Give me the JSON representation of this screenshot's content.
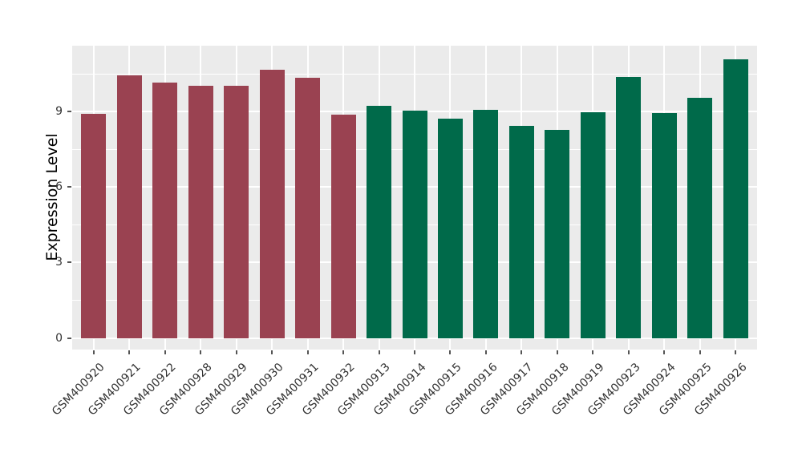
{
  "figure": {
    "background": "#FFFFFF"
  },
  "chart_data": {
    "type": "bar",
    "title": "",
    "xlabel": "",
    "ylabel": "Expression Level",
    "categories": [
      "GSM400920",
      "GSM400921",
      "GSM400922",
      "GSM400928",
      "GSM400929",
      "GSM400930",
      "GSM400931",
      "GSM400932",
      "GSM400913",
      "GSM400914",
      "GSM400915",
      "GSM400916",
      "GSM400917",
      "GSM400918",
      "GSM400919",
      "GSM400923",
      "GSM400924",
      "GSM400925",
      "GSM400926"
    ],
    "values": [
      8.88,
      10.43,
      10.14,
      10.02,
      10.02,
      10.64,
      10.33,
      8.87,
      9.21,
      9.02,
      8.7,
      9.05,
      8.42,
      8.26,
      8.96,
      10.36,
      8.92,
      9.53,
      11.06
    ],
    "bar_colors": [
      "#9A4251",
      "#9A4251",
      "#9A4251",
      "#9A4251",
      "#9A4251",
      "#9A4251",
      "#9A4251",
      "#9A4251",
      "#006A4A",
      "#006A4A",
      "#006A4A",
      "#006A4A",
      "#006A4A",
      "#006A4A",
      "#006A4A",
      "#006A4A",
      "#006A4A",
      "#006A4A",
      "#006A4A"
    ],
    "yticks": [
      0,
      3,
      6,
      9
    ],
    "ytick_labels": [
      "0",
      "3",
      "6",
      "9"
    ],
    "minor_yticks": [
      1.5,
      4.5,
      7.5,
      10.5
    ],
    "ylim": [
      -0.46,
      11.6
    ],
    "grid": true,
    "legend": "none",
    "x_tick_rotation_deg": 45,
    "panel_background": "#EBEBEB",
    "gridline_color": "#FFFFFF",
    "tick_mark_color": "#555555",
    "tick_label_color": "#333333",
    "axis_title_color": "#000000"
  }
}
